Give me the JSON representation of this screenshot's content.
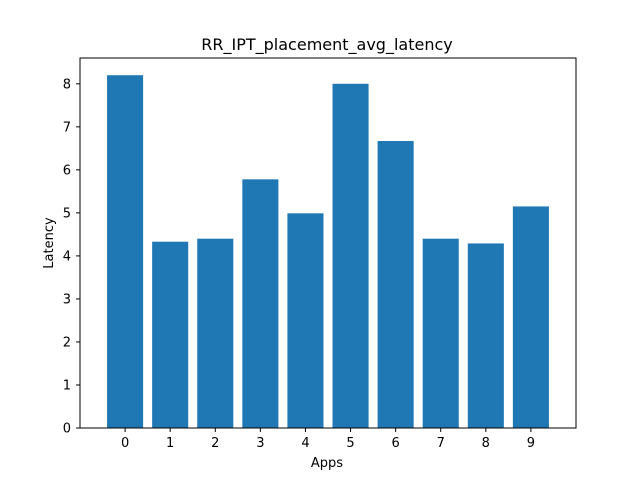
{
  "chart_data": {
    "type": "bar",
    "title": "RR_IPT_placement_avg_latency",
    "xlabel": "Apps",
    "ylabel": "Latency",
    "categories": [
      "0",
      "1",
      "2",
      "3",
      "4",
      "5",
      "6",
      "7",
      "8",
      "9"
    ],
    "values": [
      8.2,
      4.33,
      4.4,
      5.78,
      4.99,
      8.0,
      6.67,
      4.4,
      4.29,
      5.15
    ],
    "ylim": [
      0,
      8.6
    ],
    "yticks": [
      0,
      1,
      2,
      3,
      4,
      5,
      6,
      7,
      8
    ],
    "grid": false,
    "legend": "none",
    "bar_color": "#1f77b4"
  }
}
